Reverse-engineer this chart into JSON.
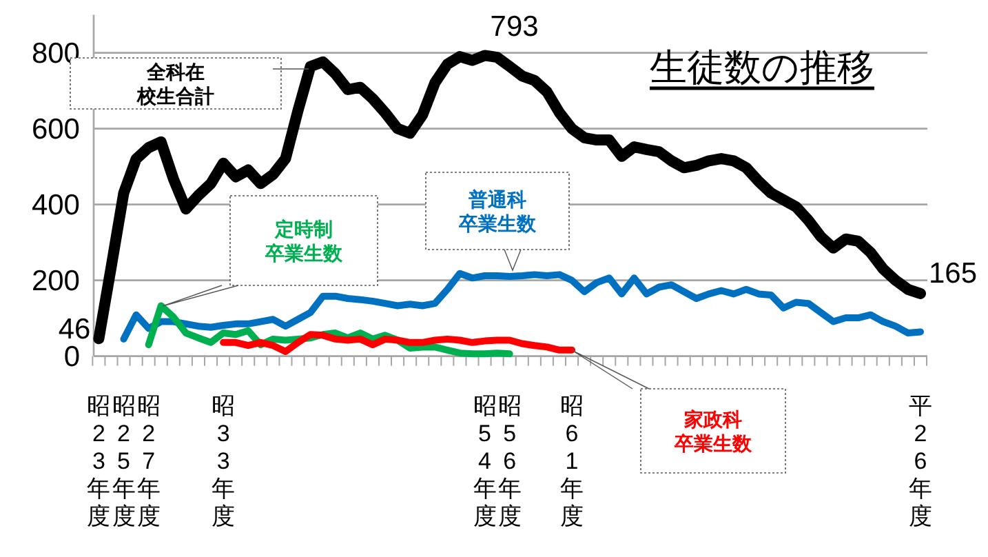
{
  "chart_data": {
    "type": "line",
    "title": "生徒数の推移",
    "categories": [
      "昭23年度",
      null,
      "昭25年度",
      null,
      "昭27年度",
      null,
      null,
      null,
      null,
      null,
      "昭33年度",
      null,
      null,
      null,
      null,
      null,
      null,
      null,
      null,
      null,
      null,
      null,
      null,
      null,
      null,
      null,
      null,
      null,
      null,
      null,
      null,
      "昭54年度",
      null,
      "昭56年度",
      null,
      null,
      null,
      null,
      "昭61年度",
      null,
      null,
      null,
      null,
      null,
      null,
      null,
      null,
      null,
      null,
      null,
      null,
      null,
      null,
      null,
      null,
      null,
      null,
      null,
      null,
      null,
      null,
      null,
      null,
      null,
      null,
      null,
      "平26年度"
    ],
    "ylim": [
      0,
      900
    ],
    "yticks": [
      0,
      200,
      400,
      600,
      800
    ],
    "grid": "y",
    "series": [
      {
        "name": "全科在校生合計",
        "color": "#000000",
        "values": [
          46,
          236,
          430,
          520,
          550,
          565,
          467,
          388,
          424,
          455,
          509,
          473,
          491,
          455,
          479,
          521,
          648,
          764,
          776,
          745,
          703,
          709,
          679,
          642,
          600,
          588,
          636,
          721,
          770,
          790,
          780,
          793,
          788,
          764,
          739,
          727,
          697,
          642,
          600,
          576,
          570,
          570,
          527,
          552,
          545,
          539,
          515,
          497,
          503,
          515,
          521,
          515,
          497,
          461,
          430,
          412,
          394,
          358,
          315,
          285,
          309,
          303,
          273,
          230,
          200,
          176,
          165
        ],
        "value_labels": [
          "46",
          null,
          null,
          null,
          null,
          null,
          null,
          null,
          null,
          null,
          null,
          null,
          null,
          null,
          null,
          null,
          null,
          null,
          null,
          null,
          null,
          null,
          null,
          null,
          null,
          null,
          null,
          null,
          null,
          null,
          null,
          "793",
          null,
          null,
          null,
          null,
          null,
          null,
          null,
          null,
          null,
          null,
          null,
          null,
          null,
          null,
          null,
          null,
          null,
          null,
          null,
          null,
          null,
          null,
          null,
          null,
          null,
          null,
          null,
          null,
          null,
          null,
          null,
          null,
          null,
          null,
          "165"
        ]
      },
      {
        "name": "普通科卒業生数",
        "color": "#0070c0",
        "values": [
          null,
          null,
          45,
          109,
          73,
          91,
          91,
          85,
          79,
          76,
          81,
          85,
          85,
          91,
          97,
          79,
          97,
          115,
          158,
          158,
          152,
          149,
          145,
          139,
          133,
          137,
          133,
          139,
          176,
          218,
          206,
          212,
          212,
          210,
          212,
          215,
          212,
          215,
          200,
          170,
          194,
          206,
          164,
          206,
          164,
          182,
          188,
          170,
          152,
          164,
          173,
          164,
          176,
          164,
          161,
          127,
          142,
          139,
          115,
          91,
          101,
          101,
          109,
          91,
          79,
          61,
          64
        ]
      },
      {
        "name": "定時制卒業生数",
        "color": "#00b050",
        "values": [
          null,
          null,
          null,
          null,
          30,
          133,
          103,
          61,
          48,
          36,
          61,
          57,
          67,
          30,
          45,
          42,
          45,
          48,
          57,
          61,
          48,
          61,
          45,
          55,
          42,
          21,
          24,
          24,
          16,
          8,
          6,
          6,
          8,
          6,
          null,
          null,
          null,
          null,
          null,
          null,
          null,
          null,
          null,
          null,
          null,
          null,
          null,
          null,
          null,
          null,
          null,
          null,
          null,
          null,
          null,
          null,
          null,
          null,
          null,
          null,
          null,
          null,
          null,
          null,
          null,
          null,
          null
        ]
      },
      {
        "name": "家政科卒業生数",
        "color": "#ff0000",
        "values": [
          null,
          null,
          null,
          null,
          null,
          null,
          null,
          null,
          null,
          null,
          36,
          36,
          28,
          36,
          28,
          12,
          36,
          57,
          55,
          45,
          42,
          45,
          30,
          45,
          42,
          36,
          36,
          42,
          45,
          42,
          36,
          40,
          42,
          42,
          33,
          28,
          24,
          16,
          16,
          null,
          null,
          null,
          null,
          null,
          null,
          null,
          null,
          null,
          null,
          null,
          null,
          null,
          null,
          null,
          null,
          null,
          null,
          null,
          null,
          null,
          null,
          null,
          null,
          null,
          null,
          null,
          null
        ]
      }
    ]
  }
}
